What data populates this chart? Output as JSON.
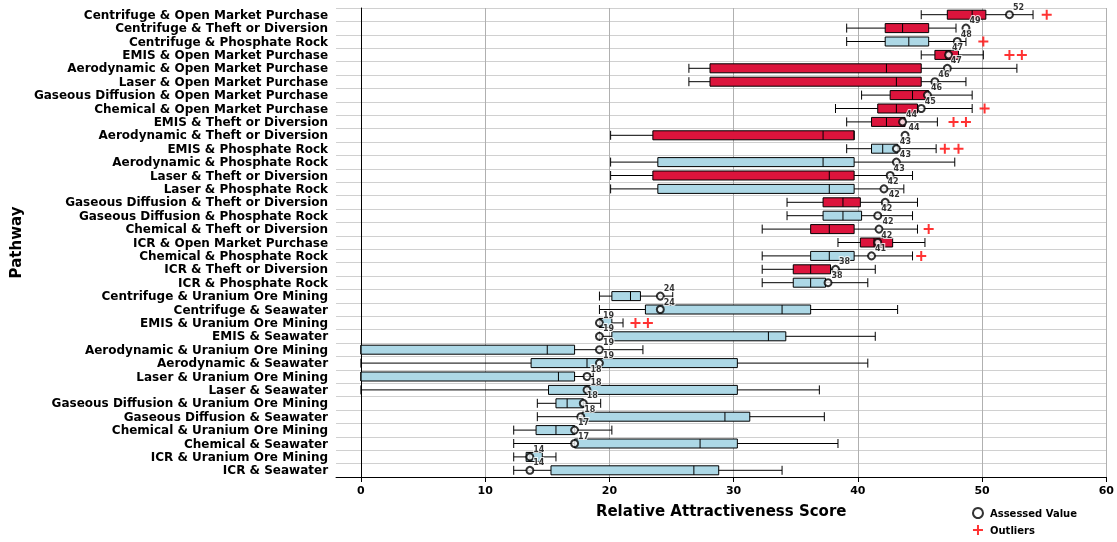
{
  "chart_data": {
    "type": "box",
    "orientation": "horizontal",
    "xlabel": "Relative Attractiveness Score",
    "ylabel": "Pathway",
    "categories": [
      "Centrifuge & Open Market Purchase",
      "Centrifuge & Theft or Diversion",
      "Centrifuge & Phosphate Rock",
      "EMIS & Open Market Purchase",
      "Aerodynamic & Open Market Purchase",
      "Laser & Open Market Purchase",
      "Gaseous Diffusion & Open Market Purchase",
      "Chemical & Open Market Purchase",
      "EMIS & Theft or Diversion",
      "Aerodynamic & Theft or Diversion",
      "EMIS & Phosphate Rock",
      "Aerodynamic & Phosphate Rock",
      "Laser & Theft or Diversion",
      "Laser & Phosphate Rock",
      "Gaseous Diffusion & Theft or Diversion",
      "Gaseous Diffusion & Phosphate Rock",
      "Chemical & Theft or Diversion",
      "ICR & Open Market Purchase",
      "Chemical & Phosphate Rock",
      "ICR & Theft or Diversion",
      "ICR & Phosphate Rock",
      "Centrifuge & Uranium Ore Mining",
      "Centrifuge & Seawater",
      "EMIS & Uranium Ore Mining",
      "EMIS & Seawater",
      "Aerodynamic & Uranium Ore Mining",
      "Aerodynamic & Seawater",
      "Laser & Uranium Ore Mining",
      "Laser & Seawater",
      "Gaseous Diffusion & Uranium Ore Mining",
      "Gaseous Diffusion & Seawater",
      "Chemical & Uranium Ore Mining",
      "Chemical & Seawater",
      "ICR & Uranium Ore Mining",
      "ICR & Seawater"
    ],
    "xlim": [
      -2,
      60
    ],
    "xticks": [
      0,
      10,
      20,
      30,
      40,
      50,
      60
    ],
    "grid": true,
    "legend": "bottom right",
    "series": [
      {
        "colors": [
          "#dc143c",
          "#dc143c",
          "#add8e6",
          "#dc143c",
          "#dc143c",
          "#dc143c",
          "#dc143c",
          "#dc143c",
          "#dc143c",
          "#dc143c",
          "#add8e6",
          "#add8e6",
          "#dc143c",
          "#add8e6",
          "#dc143c",
          "#add8e6",
          "#dc143c",
          "#dc143c",
          "#add8e6",
          "#dc143c",
          "#add8e6",
          "#add8e6",
          "#add8e6",
          "#add8e6",
          "#add8e6",
          "#add8e6",
          "#add8e6",
          "#add8e6",
          "#add8e6",
          "#add8e6",
          "#add8e6",
          "#add8e6",
          "#add8e6",
          "#add8e6",
          "#add8e6"
        ],
        "boxes": [
          {
            "low": 45.1,
            "q1": 47.2,
            "median": 49.2,
            "q3": 50.3,
            "high": 54.1
          },
          {
            "low": 39.1,
            "q1": 42.2,
            "median": 43.6,
            "q3": 45.7,
            "high": 47.9
          },
          {
            "low": 39.1,
            "q1": 42.2,
            "median": 44.1,
            "q3": 45.7,
            "high": 48.7
          },
          {
            "low": 45.1,
            "q1": 46.2,
            "median": 47.1,
            "q3": 48.1,
            "high": 50.1
          },
          {
            "low": 26.4,
            "q1": 28.1,
            "median": 42.3,
            "q3": 45.1,
            "high": 52.8
          },
          {
            "low": 26.4,
            "q1": 28.1,
            "median": 43.1,
            "q3": 45.1,
            "high": 48.7
          },
          {
            "low": 40.3,
            "q1": 42.6,
            "median": 44.4,
            "q3": 45.7,
            "high": 49.2
          },
          {
            "low": 38.2,
            "q1": 41.6,
            "median": 43.1,
            "q3": 44.8,
            "high": 49.2
          },
          {
            "low": 39.1,
            "q1": 41.1,
            "median": 42.3,
            "q3": 43.8,
            "high": 46.4
          },
          {
            "low": 20.1,
            "q1": 23.5,
            "median": 37.2,
            "q3": 39.7,
            "high": 39.7
          },
          {
            "low": 39.1,
            "q1": 41.1,
            "median": 42.0,
            "q3": 43.2,
            "high": 46.3
          },
          {
            "low": 20.1,
            "q1": 23.9,
            "median": 37.2,
            "q3": 39.7,
            "high": 47.8
          },
          {
            "low": 20.1,
            "q1": 23.5,
            "median": 37.7,
            "q3": 39.7,
            "high": 44.4
          },
          {
            "low": 20.1,
            "q1": 23.9,
            "median": 37.7,
            "q3": 39.7,
            "high": 43.7
          },
          {
            "low": 34.3,
            "q1": 37.2,
            "median": 38.8,
            "q3": 40.2,
            "high": 44.8
          },
          {
            "low": 34.3,
            "q1": 37.2,
            "median": 38.8,
            "q3": 40.3,
            "high": 44.4
          },
          {
            "low": 32.3,
            "q1": 36.2,
            "median": 37.7,
            "q3": 39.7,
            "high": 44.8
          },
          {
            "low": 38.4,
            "q1": 40.2,
            "median": 41.3,
            "q3": 42.8,
            "high": 45.4
          },
          {
            "low": 32.3,
            "q1": 36.2,
            "median": 37.7,
            "q3": 39.7,
            "high": 44.4
          },
          {
            "low": 32.3,
            "q1": 34.8,
            "median": 36.2,
            "q3": 37.8,
            "high": 41.4
          },
          {
            "low": 32.3,
            "q1": 34.8,
            "median": 36.2,
            "q3": 37.4,
            "high": 40.8
          },
          {
            "low": 19.2,
            "q1": 20.2,
            "median": 21.7,
            "q3": 22.5,
            "high": 25.1
          },
          {
            "low": 19.2,
            "q1": 22.9,
            "median": 33.9,
            "q3": 36.2,
            "high": 43.2
          },
          {
            "low": 19.2,
            "q1": 19.2,
            "median": 19.3,
            "q3": 20.2,
            "high": 21.1
          },
          {
            "low": 19.2,
            "q1": 20.2,
            "median": 32.8,
            "q3": 34.2,
            "high": 41.4
          },
          {
            "low": 0,
            "q1": 0,
            "median": 15.0,
            "q3": 17.2,
            "high": 22.7
          },
          {
            "low": 0,
            "q1": 13.7,
            "median": 18.2,
            "q3": 30.3,
            "high": 40.8
          },
          {
            "low": 0,
            "q1": 0,
            "median": 15.9,
            "q3": 17.2,
            "high": 18.7
          },
          {
            "low": 0,
            "q1": 15.1,
            "median": 18.2,
            "q3": 30.3,
            "high": 36.9
          },
          {
            "low": 14.2,
            "q1": 15.7,
            "median": 16.6,
            "q3": 17.9,
            "high": 19.3
          },
          {
            "low": 14.2,
            "q1": 17.8,
            "median": 29.3,
            "q3": 31.3,
            "high": 37.3
          },
          {
            "low": 12.3,
            "q1": 14.1,
            "median": 15.7,
            "q3": 17.2,
            "high": 20.2
          },
          {
            "low": 12.3,
            "q1": 17.2,
            "median": 27.3,
            "q3": 30.3,
            "high": 38.4
          },
          {
            "low": 12.3,
            "q1": 13.3,
            "median": 13.6,
            "q3": 14.6,
            "high": 15.7
          },
          {
            "low": 12.3,
            "q1": 15.3,
            "median": 26.8,
            "q3": 28.8,
            "high": 33.9
          }
        ]
      },
      {
        "type": "scatter",
        "name": "Assessed Value",
        "color": "#000000",
        "marker": "circle",
        "values": [
          52.2,
          48.7,
          48.0,
          47.3,
          47.2,
          46.2,
          45.6,
          45.1,
          43.6,
          43.8,
          43.1,
          43.1,
          42.6,
          42.1,
          42.2,
          41.6,
          41.7,
          41.6,
          41.1,
          38.2,
          37.6,
          24.1,
          24.1,
          19.2,
          19.2,
          19.2,
          19.2,
          18.2,
          18.2,
          17.9,
          17.7,
          17.2,
          17.2,
          13.6,
          13.6
        ],
        "value_labels": [
          "52",
          "49",
          "48",
          "47",
          "47",
          "46",
          "46",
          "45",
          "44",
          "44",
          "43",
          "43",
          "43",
          "42",
          "42",
          "42",
          "42",
          "42",
          "41",
          "38",
          "38",
          "24",
          "24",
          "19",
          "19",
          "19",
          "19",
          "18",
          "18",
          "18",
          "18",
          "17",
          "17",
          "14",
          "14"
        ]
      },
      {
        "type": "scatter",
        "name": "Outliers",
        "color": "#ff0000",
        "marker": "cross",
        "values": [
          55.2,
          null,
          50.1,
          52.2,
          null,
          null,
          null,
          50.2,
          47.7,
          null,
          47.0,
          null,
          null,
          null,
          null,
          null,
          45.7,
          null,
          45.1,
          null,
          null,
          null,
          null,
          22.1,
          null,
          null,
          null,
          null,
          null,
          null,
          null,
          null,
          null,
          null,
          null
        ]
      },
      {
        "type": "scatter",
        "color": "#ff0000",
        "marker": "cross",
        "values": [
          null,
          null,
          null,
          53.2,
          null,
          null,
          null,
          null,
          48.7,
          null,
          48.1,
          null,
          null,
          null,
          null,
          null,
          null,
          null,
          null,
          null,
          null,
          null,
          null,
          23.1,
          null,
          null,
          null,
          null,
          null,
          null,
          null,
          null,
          null,
          null,
          null
        ]
      }
    ]
  }
}
